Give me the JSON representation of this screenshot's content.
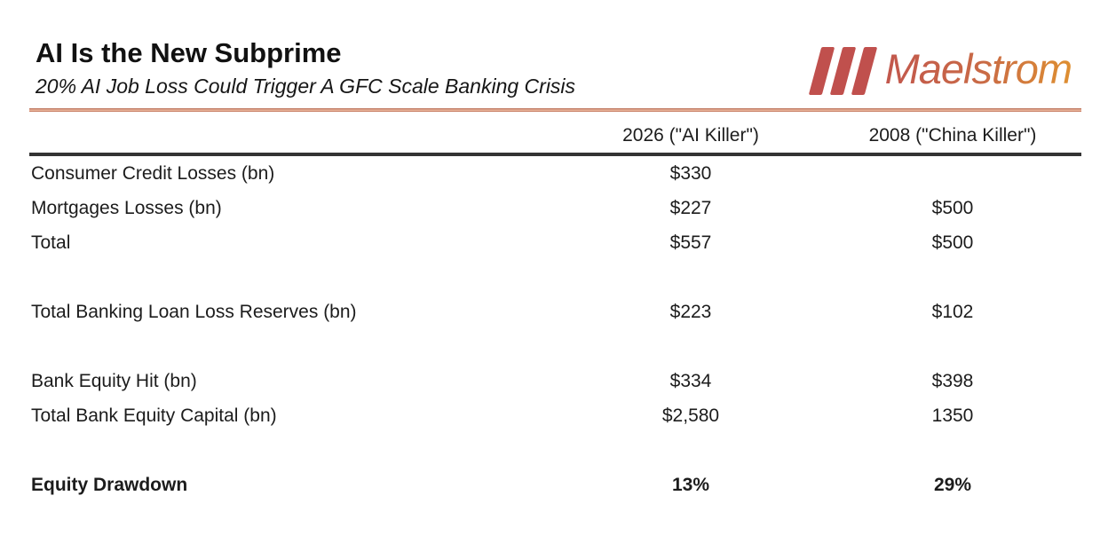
{
  "header": {
    "title": "AI Is the New Subprime",
    "subtitle": "20% AI Job Loss Could Trigger A GFC Scale Banking Crisis",
    "logo_text": "Maelstrom"
  },
  "colors": {
    "accent_rule": "#c0705a",
    "logo_bar_red": "#c0504d",
    "logo_text_gradient_start": "#c2574d",
    "logo_text_gradient_end": "#e0922f",
    "header_divider": "#333333",
    "text": "#1c1c1c"
  },
  "table": {
    "columns": [
      "",
      "2026 (\"AI Killer\")",
      "2008 (\"China Killer\")"
    ],
    "rows": [
      {
        "label": "Consumer Credit Losses (bn)",
        "ai_2026": "$330",
        "gfc_2008": ""
      },
      {
        "label": "Mortgages Losses (bn)",
        "ai_2026": "$227",
        "gfc_2008": "$500"
      },
      {
        "label": "Total",
        "ai_2026": "$557",
        "gfc_2008": "$500"
      },
      {
        "label": "",
        "ai_2026": "",
        "gfc_2008": ""
      },
      {
        "label": "Total Banking Loan Loss Reserves (bn)",
        "ai_2026": "$223",
        "gfc_2008": "$102"
      },
      {
        "label": "",
        "ai_2026": "",
        "gfc_2008": ""
      },
      {
        "label": "Bank Equity Hit (bn)",
        "ai_2026": "$334",
        "gfc_2008": "$398"
      },
      {
        "label": "Total Bank Equity Capital (bn)",
        "ai_2026": "$2,580",
        "gfc_2008": "1350"
      },
      {
        "label": "",
        "ai_2026": "",
        "gfc_2008": ""
      },
      {
        "label": "Equity Drawdown",
        "ai_2026": "13%",
        "gfc_2008": "29%"
      }
    ]
  }
}
